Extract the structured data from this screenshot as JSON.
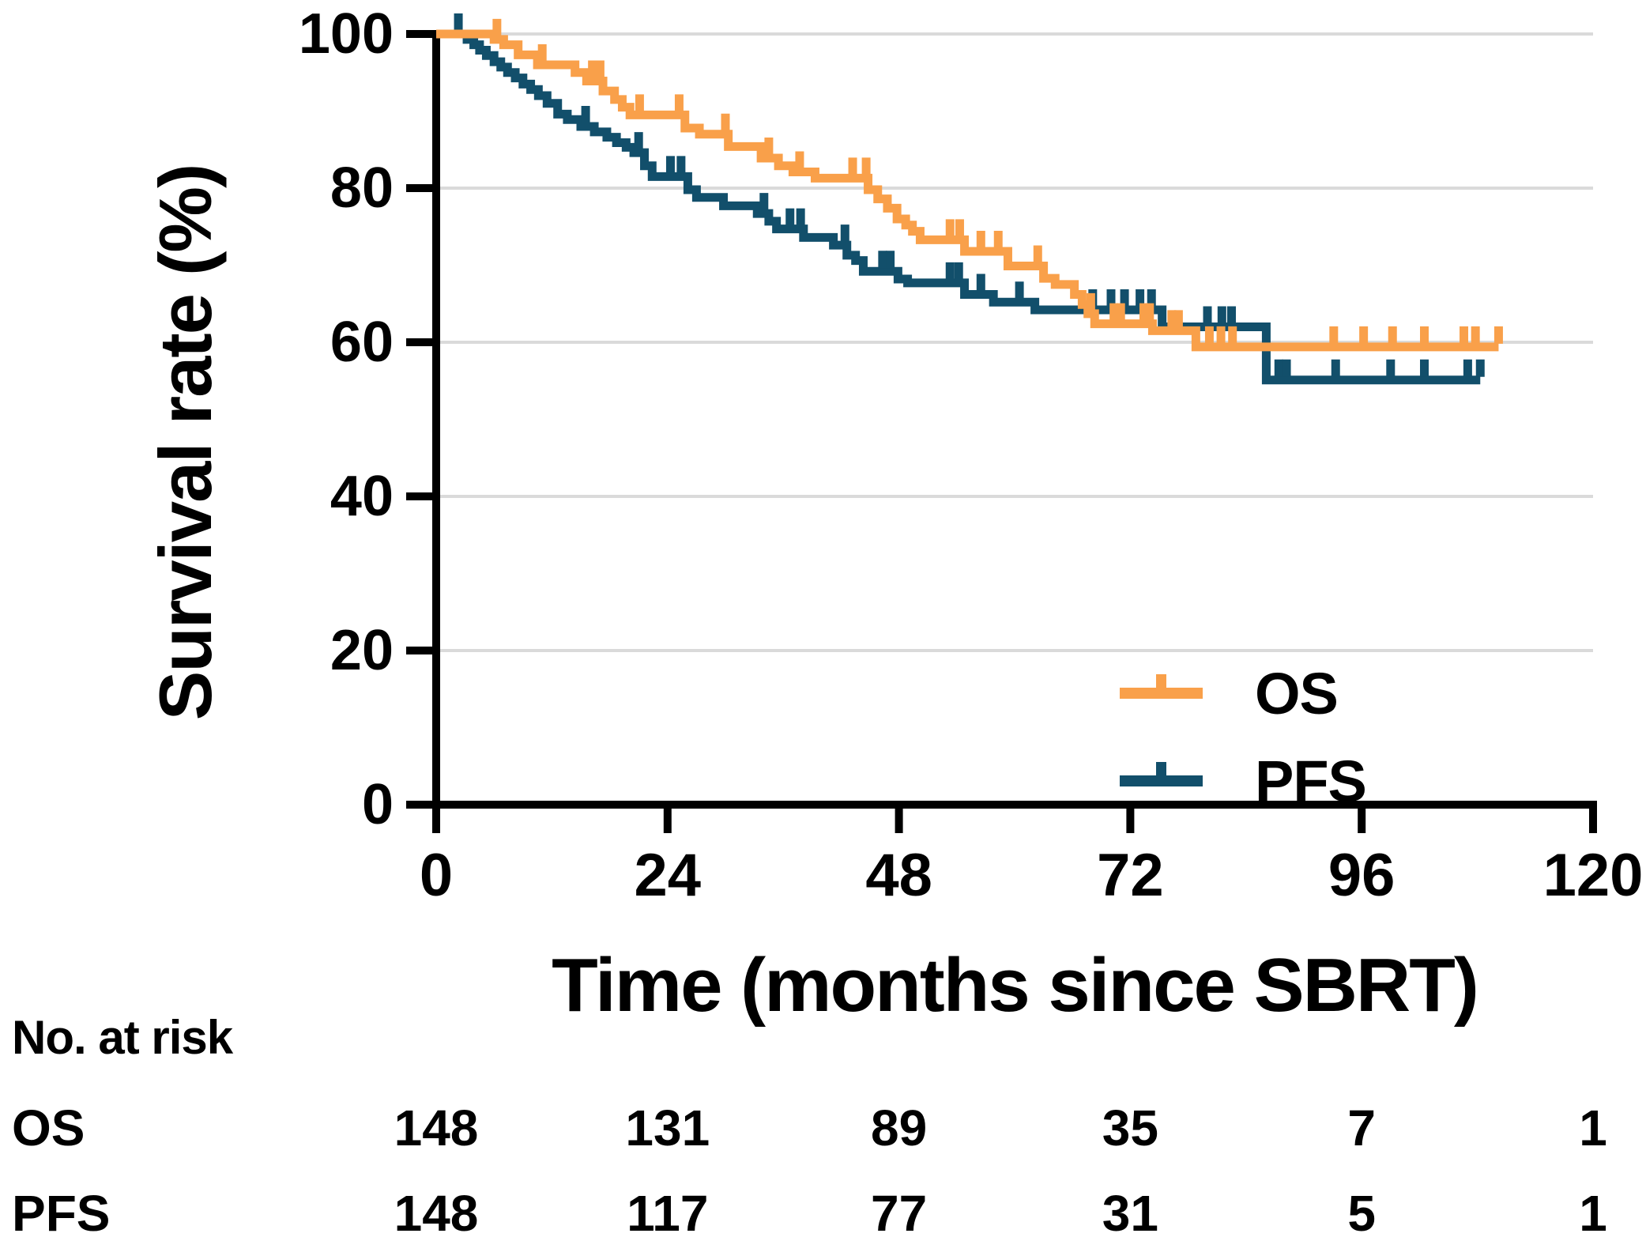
{
  "chart_data": {
    "type": "line",
    "subtype": "kaplan-meier-step",
    "xlabel": "Time (months since SBRT)",
    "ylabel": "Survival rate (%)",
    "xlim": [
      0,
      120
    ],
    "ylim": [
      0,
      100
    ],
    "xticks": [
      0,
      24,
      48,
      72,
      96,
      120
    ],
    "yticks": [
      0,
      20,
      40,
      60,
      80,
      100
    ],
    "grid": "horizontal",
    "gridline_color": "#DADADA",
    "axis_color": "#000000",
    "legend_position": "inside-right",
    "series": [
      {
        "name": "OS",
        "color": "#F9A04A",
        "steps": [
          [
            0,
            100
          ],
          [
            6,
            99.3
          ],
          [
            7,
            98.6
          ],
          [
            8.5,
            97.3
          ],
          [
            10.5,
            96
          ],
          [
            14.4,
            95
          ],
          [
            15.6,
            93.9
          ],
          [
            17.3,
            92.6
          ],
          [
            18.5,
            91.5
          ],
          [
            19.3,
            90.5
          ],
          [
            20.1,
            89.5
          ],
          [
            25.8,
            87.8
          ],
          [
            27.3,
            87
          ],
          [
            30.3,
            85.4
          ],
          [
            33.7,
            83.9
          ],
          [
            35.5,
            82.9
          ],
          [
            37,
            82.1
          ],
          [
            39.3,
            81.3
          ],
          [
            44.8,
            79.8
          ],
          [
            45.8,
            78.6
          ],
          [
            46.8,
            77.4
          ],
          [
            47.8,
            76
          ],
          [
            48.7,
            75.2
          ],
          [
            49.4,
            74.4
          ],
          [
            50.2,
            73.3
          ],
          [
            54.8,
            71.8
          ],
          [
            59.3,
            69.9
          ],
          [
            63,
            68.3
          ],
          [
            64.2,
            67.5
          ],
          [
            66.2,
            66.2
          ],
          [
            67,
            64.9
          ],
          [
            67.6,
            63.7
          ],
          [
            68.3,
            62.4
          ],
          [
            74.3,
            61.5
          ],
          [
            78.8,
            59.4
          ]
        ],
        "censors": [
          6.3,
          11,
          16.2,
          17,
          21.1,
          25.2,
          30,
          34.5,
          37.7,
          43.2,
          44.6,
          53.3,
          54.3,
          56.5,
          58.3,
          62.4,
          67.9,
          70.3,
          71,
          73.4,
          74,
          76.3,
          77,
          80.2,
          81.4,
          82.6,
          93.1,
          96.2,
          99.2,
          102.5,
          106.6,
          107.8,
          110.2
        ],
        "end_time": 110.2
      },
      {
        "name": "PFS",
        "color": "#124F6B",
        "steps": [
          [
            0,
            100
          ],
          [
            3.2,
            99.3
          ],
          [
            3.9,
            98.6
          ],
          [
            4.5,
            97.9
          ],
          [
            5.2,
            97.2
          ],
          [
            6,
            96.4
          ],
          [
            6.7,
            95.7
          ],
          [
            7.4,
            95
          ],
          [
            8.2,
            94.3
          ],
          [
            9,
            93.5
          ],
          [
            9.8,
            92.8
          ],
          [
            10.6,
            92
          ],
          [
            11.5,
            91
          ],
          [
            12.6,
            89.6
          ],
          [
            13.6,
            88.9
          ],
          [
            15,
            88
          ],
          [
            16.4,
            87.3
          ],
          [
            17.7,
            86.6
          ],
          [
            18.7,
            85.9
          ],
          [
            19.7,
            85.3
          ],
          [
            20.5,
            84.6
          ],
          [
            21.6,
            82.9
          ],
          [
            22.4,
            81.5
          ],
          [
            26.1,
            79.8
          ],
          [
            27,
            78.8
          ],
          [
            29.8,
            77.7
          ],
          [
            33.3,
            76.7
          ],
          [
            34.5,
            75.7
          ],
          [
            35.3,
            74.7
          ],
          [
            38.1,
            73.6
          ],
          [
            41.2,
            72.6
          ],
          [
            42.6,
            71.3
          ],
          [
            43.5,
            70.6
          ],
          [
            44.3,
            69.2
          ],
          [
            47.9,
            68.2
          ],
          [
            48.9,
            67.7
          ],
          [
            54.8,
            66.2
          ],
          [
            57.8,
            65.2
          ],
          [
            62.1,
            64.2
          ],
          [
            75.3,
            62
          ],
          [
            86.1,
            55.1
          ]
        ],
        "censors": [
          2.3,
          15.5,
          21,
          24.3,
          25.4,
          34,
          36.7,
          37.8,
          42.4,
          46.3,
          47.1,
          53.3,
          54.2,
          56.5,
          60.5,
          68.1,
          70,
          71.4,
          73,
          74.2,
          80,
          81.5,
          82.5,
          87.4,
          88.2,
          93.3,
          99,
          102.5,
          107,
          108.3
        ],
        "end_time": 108.3
      }
    ],
    "risk_table": {
      "title": "No. at risk",
      "times": [
        0,
        24,
        48,
        72,
        96,
        120
      ],
      "rows": [
        {
          "label": "OS",
          "values": [
            148,
            131,
            89,
            35,
            7,
            1
          ]
        },
        {
          "label": "PFS",
          "values": [
            148,
            117,
            77,
            31,
            5,
            1
          ]
        }
      ]
    }
  }
}
